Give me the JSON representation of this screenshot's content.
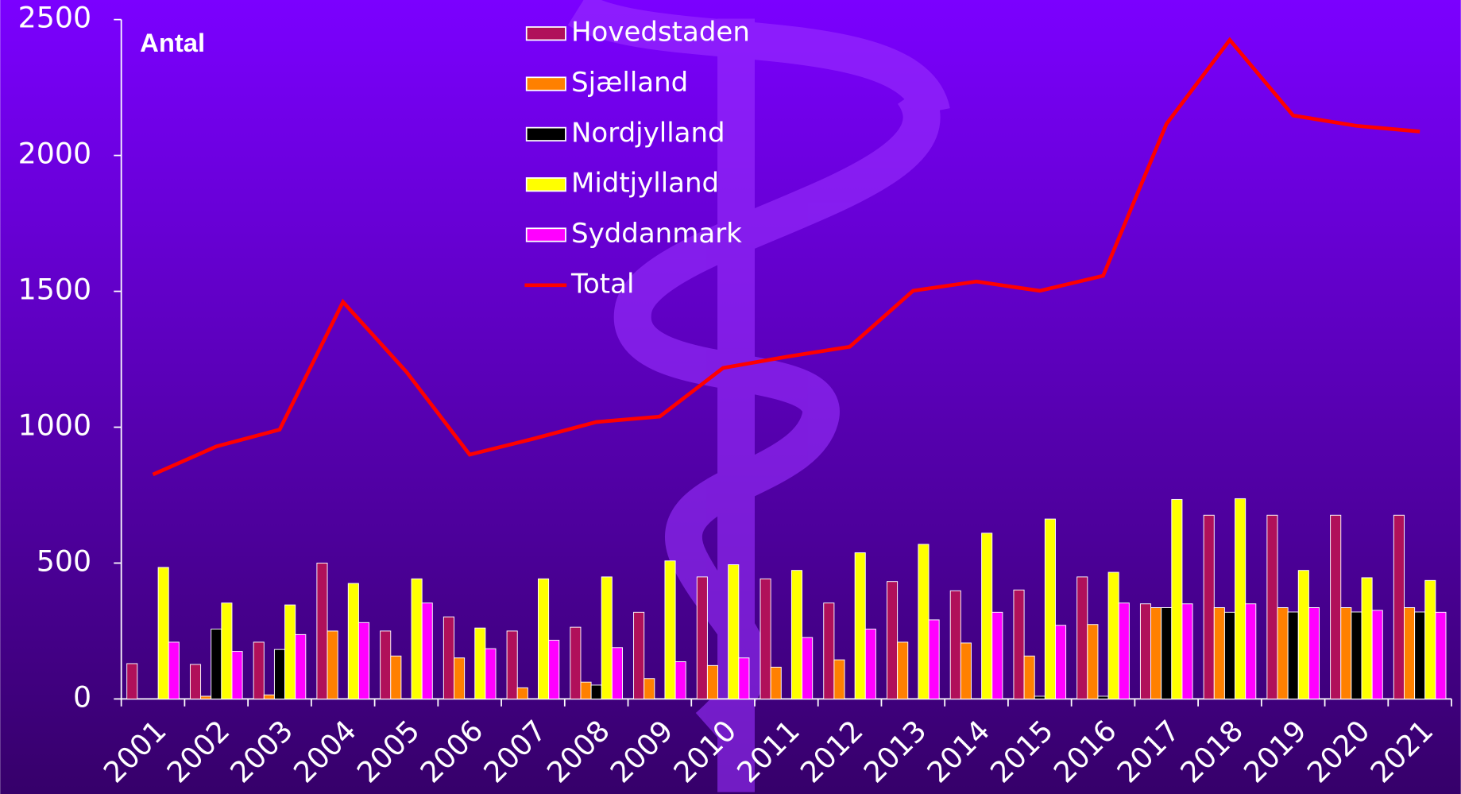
{
  "chart_data": {
    "type": "bar",
    "ylabel": "Antal",
    "categories": [
      "2001",
      "2002",
      "2003",
      "2004",
      "2005",
      "2006",
      "2007",
      "2008",
      "2009",
      "2010",
      "2011",
      "2012",
      "2013",
      "2014",
      "2015",
      "2016",
      "2017",
      "2018",
      "2019",
      "2020",
      "2021"
    ],
    "series": [
      {
        "name": "Hovedstaden",
        "color": "#b0105a",
        "values": [
          130,
          127,
          209,
          500,
          250,
          302,
          250,
          264,
          319,
          449,
          442,
          353,
          432,
          398,
          401,
          449,
          350,
          676,
          676,
          676,
          676
        ]
      },
      {
        "name": "Sjælland",
        "color": "#ff8000",
        "values": [
          0,
          10,
          15,
          250,
          158,
          151,
          41,
          62,
          75,
          123,
          117,
          144,
          209,
          206,
          158,
          274,
          336,
          336,
          336,
          336,
          336
        ]
      },
      {
        "name": "Nordjylland",
        "color": "#000000",
        "values": [
          0,
          257,
          182,
          0,
          0,
          0,
          0,
          51,
          0,
          0,
          0,
          0,
          0,
          0,
          10,
          10,
          336,
          319,
          320,
          320,
          320
        ]
      },
      {
        "name": "Midtjylland",
        "color": "#ffff00",
        "values": [
          484,
          353,
          346,
          425,
          442,
          261,
          442,
          449,
          508,
          494,
          473,
          538,
          569,
          610,
          662,
          466,
          734,
          737,
          473,
          446,
          436
        ]
      },
      {
        "name": "Syddanmark",
        "color": "#ff00ff",
        "values": [
          209,
          175,
          237,
          281,
          353,
          185,
          216,
          189,
          137,
          151,
          226,
          257,
          291,
          319,
          271,
          353,
          350,
          350,
          336,
          326,
          319
        ]
      },
      {
        "name": "Total",
        "color": "#ff0000",
        "type": "line",
        "values": [
          826,
          929,
          991,
          1461,
          1204,
          899,
          957,
          1019,
          1039,
          1218,
          1259,
          1296,
          1502,
          1536,
          1502,
          1557,
          2116,
          2425,
          2147,
          2109,
          2088
        ]
      }
    ],
    "ylim": [
      0,
      2500
    ],
    "yticks": [
      0,
      500,
      1000,
      1500,
      2000,
      2500
    ]
  }
}
